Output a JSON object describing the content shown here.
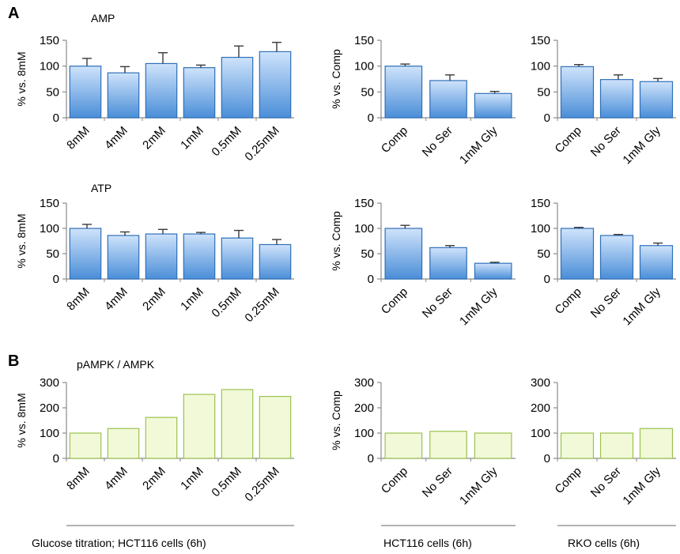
{
  "panel_letters": [
    "A",
    "B"
  ],
  "groups": [
    "Glucose titration;  HCT116 cells (6h)",
    "HCT116 cells (6h)",
    "RKO cells (6h)"
  ],
  "colors": {
    "blue_top": "#cfe3fb",
    "blue_bottom": "#4a8ed8",
    "blue_stroke": "#2f6fb8",
    "green_fill": "#f1f9d9",
    "green_stroke": "#9bc24f",
    "axis": "#8a8a8a",
    "group_line": "#9a9a9a"
  },
  "chart_data": [
    {
      "type": "bar",
      "row": "AMP",
      "title": "AMP",
      "ylabel": "% vs. 8mM",
      "categories": [
        "8mM",
        "4mM",
        "2mM",
        "1mM",
        "0.5mM",
        "0.25mM"
      ],
      "values": [
        100,
        87,
        105,
        97,
        117,
        128
      ],
      "errors": [
        15,
        12,
        21,
        5,
        22,
        18
      ],
      "ylim": [
        0,
        150
      ],
      "yticks": [
        0,
        50,
        100,
        150
      ],
      "style": "blue"
    },
    {
      "type": "bar",
      "row": "AMP",
      "title": "",
      "ylabel": "% vs. Comp",
      "categories": [
        "Comp",
        "No Ser",
        "1mM Gly"
      ],
      "values": [
        100,
        72,
        47
      ],
      "errors": [
        4,
        11,
        4
      ],
      "ylim": [
        0,
        150
      ],
      "yticks": [
        0,
        50,
        100,
        150
      ],
      "style": "blue"
    },
    {
      "type": "bar",
      "row": "AMP",
      "title": "",
      "ylabel": "",
      "categories": [
        "Comp",
        "No Ser",
        "1mM Gly"
      ],
      "values": [
        99,
        74,
        70
      ],
      "errors": [
        4,
        9,
        6
      ],
      "ylim": [
        0,
        150
      ],
      "yticks": [
        0,
        50,
        100,
        150
      ],
      "style": "blue"
    },
    {
      "type": "bar",
      "row": "ATP",
      "title": "ATP",
      "ylabel": "% vs. 8mM",
      "categories": [
        "8mM",
        "4mM",
        "2mM",
        "1mM",
        "0.5mM",
        "0.25mM"
      ],
      "values": [
        100,
        86,
        89,
        89,
        81,
        68
      ],
      "errors": [
        8,
        7,
        9,
        3,
        15,
        10
      ],
      "ylim": [
        0,
        150
      ],
      "yticks": [
        0,
        50,
        100,
        150
      ],
      "style": "blue"
    },
    {
      "type": "bar",
      "row": "ATP",
      "title": "",
      "ylabel": "% vs. Comp",
      "categories": [
        "Comp",
        "No Ser",
        "1mM Gly"
      ],
      "values": [
        100,
        62,
        31
      ],
      "errors": [
        6,
        4,
        2
      ],
      "ylim": [
        0,
        150
      ],
      "yticks": [
        0,
        50,
        100,
        150
      ],
      "style": "blue"
    },
    {
      "type": "bar",
      "row": "ATP",
      "title": "",
      "ylabel": "",
      "categories": [
        "Comp",
        "No Ser",
        "1mM Gly"
      ],
      "values": [
        100,
        86,
        66
      ],
      "errors": [
        2,
        2,
        5
      ],
      "ylim": [
        0,
        150
      ],
      "yticks": [
        0,
        50,
        100,
        150
      ],
      "style": "blue"
    },
    {
      "type": "bar",
      "row": "pAMPK",
      "title": "pAMPK / AMPK",
      "ylabel": "% vs. 8mM",
      "categories": [
        "8mM",
        "4mM",
        "2mM",
        "1mM",
        "0.5mM",
        "0.25mM"
      ],
      "values": [
        100,
        118,
        162,
        253,
        272,
        245
      ],
      "errors": [],
      "ylim": [
        0,
        300
      ],
      "yticks": [
        0,
        100,
        200,
        300
      ],
      "style": "green"
    },
    {
      "type": "bar",
      "row": "pAMPK",
      "title": "",
      "ylabel": "% vs. Comp",
      "categories": [
        "Comp",
        "No Ser",
        "1mM Gly"
      ],
      "values": [
        100,
        107,
        100
      ],
      "errors": [],
      "ylim": [
        0,
        300
      ],
      "yticks": [
        0,
        100,
        200,
        300
      ],
      "style": "green"
    },
    {
      "type": "bar",
      "row": "pAMPK",
      "title": "",
      "ylabel": "",
      "categories": [
        "Comp",
        "No Ser",
        "1mM Gly"
      ],
      "values": [
        100,
        100,
        118
      ],
      "errors": [],
      "ylim": [
        0,
        300
      ],
      "yticks": [
        0,
        100,
        200,
        300
      ],
      "style": "green"
    }
  ]
}
